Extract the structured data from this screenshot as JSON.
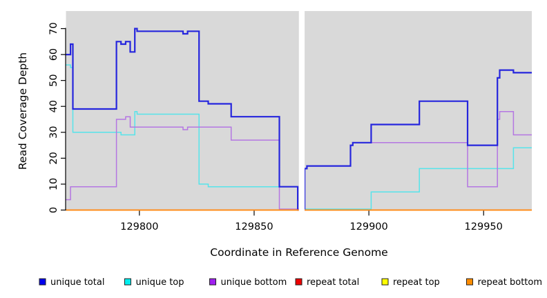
{
  "chart_data": {
    "type": "line",
    "subtype": "step",
    "title": "",
    "xlabel": "Coordinate in Reference Genome",
    "ylabel": "Read Coverage Depth",
    "xlim": [
      129768,
      129971
    ],
    "ylim": [
      0,
      70
    ],
    "xticks": [
      129800,
      129850,
      129900,
      129950
    ],
    "yticks": [
      0,
      10,
      20,
      30,
      40,
      50,
      60,
      70
    ],
    "gap_x": [
      129869.5,
      129872
    ],
    "plot_bg": "#d9d9d9",
    "gap_color": "#ffffff",
    "axis_color": "#000000",
    "legend_position": "bottom",
    "grid": false,
    "series": [
      {
        "name": "unique total",
        "color": "#2525dd",
        "legend_color": "#0000ee",
        "points": [
          [
            129768,
            60
          ],
          [
            129770,
            64
          ],
          [
            129771,
            39
          ],
          [
            129790,
            65
          ],
          [
            129792,
            64
          ],
          [
            129794,
            65
          ],
          [
            129796,
            61
          ],
          [
            129798,
            70
          ],
          [
            129799,
            69
          ],
          [
            129819,
            68
          ],
          [
            129821,
            69
          ],
          [
            129826,
            42
          ],
          [
            129830,
            41
          ],
          [
            129840,
            36
          ],
          [
            129861,
            9
          ],
          [
            129869,
            0
          ],
          [
            129872,
            16
          ],
          [
            129873,
            17
          ],
          [
            129892,
            25
          ],
          [
            129893,
            26
          ],
          [
            129901,
            33
          ],
          [
            129922,
            42
          ],
          [
            129943,
            25
          ],
          [
            129956,
            51
          ],
          [
            129957,
            54
          ],
          [
            129963,
            53
          ]
        ]
      },
      {
        "name": "unique top",
        "color": "#55e4ea",
        "legend_color": "#00eeee",
        "points": [
          [
            129768,
            56
          ],
          [
            129770,
            55
          ],
          [
            129771,
            30
          ],
          [
            129792,
            29
          ],
          [
            129798,
            38
          ],
          [
            129799,
            37
          ],
          [
            129826,
            10
          ],
          [
            129830,
            9
          ],
          [
            129869,
            0
          ],
          [
            129901,
            7
          ],
          [
            129922,
            16
          ],
          [
            129963,
            24
          ]
        ]
      },
      {
        "name": "unique bottom",
        "color": "#b476e2",
        "legend_color": "#a020f0",
        "points": [
          [
            129768,
            4
          ],
          [
            129770,
            9
          ],
          [
            129790,
            35
          ],
          [
            129794,
            36
          ],
          [
            129796,
            32
          ],
          [
            129819,
            31
          ],
          [
            129821,
            32
          ],
          [
            129840,
            27
          ],
          [
            129861,
            0
          ],
          [
            129872,
            16
          ],
          [
            129873,
            17
          ],
          [
            129892,
            25
          ],
          [
            129893,
            26
          ],
          [
            129943,
            9
          ],
          [
            129956,
            35
          ],
          [
            129957,
            38
          ],
          [
            129963,
            29
          ]
        ]
      },
      {
        "name": "repeat total",
        "color": "#e01010",
        "legend_color": "#ee0000",
        "points": [
          [
            129768,
            0
          ]
        ]
      },
      {
        "name": "repeat top",
        "color": "#f5f500",
        "legend_color": "#ffff00",
        "points": [
          [
            129768,
            0
          ]
        ]
      },
      {
        "name": "repeat bottom",
        "color": "#ff8c1a",
        "legend_color": "#ff8c00",
        "points": [
          [
            129768,
            0
          ]
        ]
      }
    ]
  }
}
